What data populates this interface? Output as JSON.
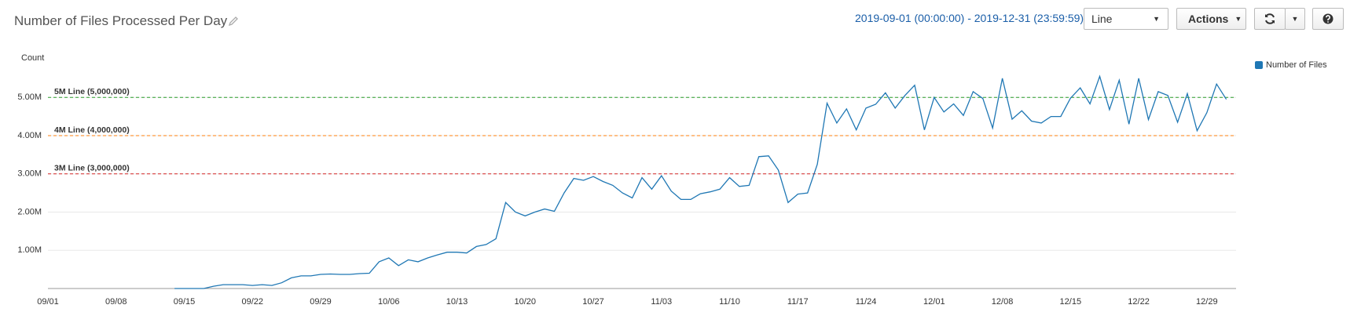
{
  "header": {
    "title": "Number of Files Processed Per Day",
    "time_range": "2019-09-01 (00:00:00) - 2019-12-31 (23:59:59)",
    "view": "Line",
    "actions": "Actions"
  },
  "chart_data": {
    "type": "line",
    "y_label": "Count",
    "x": [
      "09/01",
      "09/02",
      "09/03",
      "09/04",
      "09/05",
      "09/06",
      "09/07",
      "09/08",
      "09/09",
      "09/10",
      "09/11",
      "09/12",
      "09/13",
      "09/14",
      "09/15",
      "09/16",
      "09/17",
      "09/18",
      "09/19",
      "09/20",
      "09/21",
      "09/22",
      "09/23",
      "09/24",
      "09/25",
      "09/26",
      "09/27",
      "09/28",
      "09/29",
      "09/30",
      "10/01",
      "10/02",
      "10/03",
      "10/04",
      "10/05",
      "10/06",
      "10/07",
      "10/08",
      "10/09",
      "10/10",
      "10/11",
      "10/12",
      "10/13",
      "10/14",
      "10/15",
      "10/16",
      "10/17",
      "10/18",
      "10/19",
      "10/20",
      "10/21",
      "10/22",
      "10/23",
      "10/24",
      "10/25",
      "10/26",
      "10/27",
      "10/28",
      "10/29",
      "10/30",
      "10/31",
      "11/01",
      "11/02",
      "11/03",
      "11/04",
      "11/05",
      "11/06",
      "11/07",
      "11/08",
      "11/09",
      "11/10",
      "11/11",
      "11/12",
      "11/13",
      "11/14",
      "11/15",
      "11/16",
      "11/17",
      "11/18",
      "11/19",
      "11/20",
      "11/21",
      "11/22",
      "11/23",
      "11/24",
      "11/25",
      "11/26",
      "11/27",
      "11/28",
      "11/29",
      "11/30",
      "12/01",
      "12/02",
      "12/03",
      "12/04",
      "12/05",
      "12/06",
      "12/07",
      "12/08",
      "12/09",
      "12/10",
      "12/11",
      "12/12",
      "12/13",
      "12/14",
      "12/15",
      "12/16",
      "12/17",
      "12/18",
      "12/19",
      "12/20",
      "12/21",
      "12/22",
      "12/23",
      "12/24",
      "12/25",
      "12/26",
      "12/27",
      "12/28",
      "12/29",
      "12/30",
      "12/31"
    ],
    "xticks": [
      "09/01",
      "09/08",
      "09/15",
      "09/22",
      "09/29",
      "10/06",
      "10/13",
      "10/20",
      "10/27",
      "11/03",
      "11/10",
      "11/17",
      "11/24",
      "12/01",
      "12/08",
      "12/15",
      "12/22",
      "12/29"
    ],
    "series": [
      {
        "name": "Number of Files",
        "color": "#1f77b4",
        "values": [
          null,
          null,
          null,
          null,
          null,
          null,
          null,
          null,
          null,
          null,
          null,
          null,
          null,
          0,
          0,
          0,
          0,
          60000,
          100000,
          100000,
          100000,
          80000,
          100000,
          80000,
          150000,
          280000,
          330000,
          330000,
          370000,
          380000,
          370000,
          370000,
          390000,
          400000,
          700000,
          800000,
          600000,
          750000,
          700000,
          800000,
          880000,
          950000,
          950000,
          930000,
          1100000,
          1150000,
          1300000,
          2250000,
          2000000,
          1900000,
          2000000,
          2080000,
          2020000,
          2500000,
          2880000,
          2830000,
          2930000,
          2800000,
          2700000,
          2500000,
          2370000,
          2900000,
          2600000,
          2950000,
          2550000,
          2330000,
          2330000,
          2480000,
          2530000,
          2600000,
          2900000,
          2670000,
          2700000,
          3450000,
          3470000,
          3100000,
          2250000,
          2470000,
          2500000,
          3250000,
          4850000,
          4330000,
          4700000,
          4150000,
          4720000,
          4820000,
          5120000,
          4720000,
          5050000,
          5320000,
          4150000,
          5000000,
          4620000,
          4830000,
          4530000,
          5150000,
          4970000,
          4200000,
          5500000,
          4430000,
          4650000,
          4380000,
          4330000,
          4500000,
          4500000,
          4980000,
          5250000,
          4830000,
          5550000,
          4680000,
          5450000,
          4300000,
          5500000,
          4420000,
          5150000,
          5050000,
          4350000,
          5100000,
          4130000,
          4600000,
          5350000,
          4950000
        ]
      }
    ],
    "ylim": [
      0,
      5600000
    ],
    "yticks": [
      {
        "value": 1000000,
        "label": "1.00M"
      },
      {
        "value": 2000000,
        "label": "2.00M"
      },
      {
        "value": 3000000,
        "label": "3.00M"
      },
      {
        "value": 4000000,
        "label": "4.00M"
      },
      {
        "value": 5000000,
        "label": "5.00M"
      }
    ],
    "grid": true,
    "annotations": [
      {
        "label": "5M Line (5,000,000)",
        "value": 5000000,
        "color": "#2ca02c"
      },
      {
        "label": "4M Line (4,000,000)",
        "value": 4000000,
        "color": "#ff7f0e"
      },
      {
        "label": "3M Line (3,000,000)",
        "value": 3000000,
        "color": "#d62728"
      }
    ],
    "legend": "top-right"
  }
}
